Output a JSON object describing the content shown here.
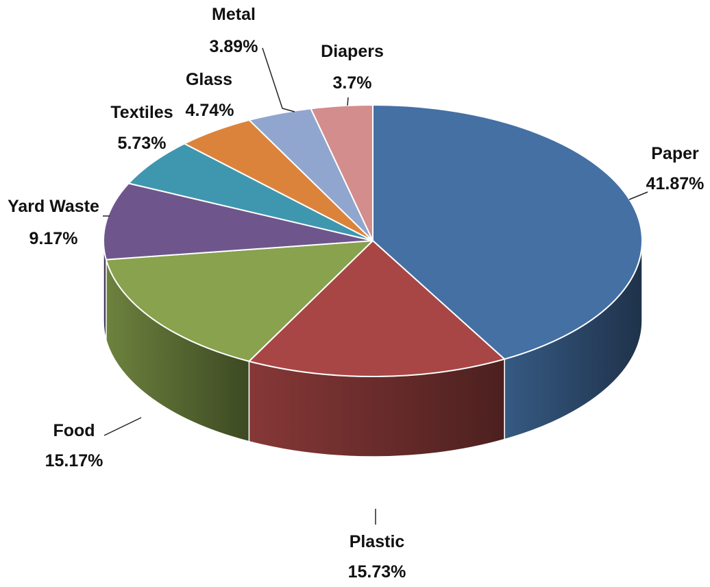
{
  "chart_data": {
    "type": "pie",
    "style": "3d",
    "title": "",
    "legend": "none",
    "slices": [
      {
        "name": "Paper",
        "value": 41.87,
        "label": "41.87%",
        "color": "#4470A4"
      },
      {
        "name": "Plastic",
        "value": 15.73,
        "label": "15.73%",
        "color": "#A84645"
      },
      {
        "name": "Food",
        "value": 15.17,
        "label": "15.17%",
        "color": "#88A24D"
      },
      {
        "name": "Yard Waste",
        "value": 9.17,
        "label": "9.17%",
        "color": "#6E568C"
      },
      {
        "name": "Textiles",
        "value": 5.73,
        "label": "5.73%",
        "color": "#3F97AF"
      },
      {
        "name": "Glass",
        "value": 4.74,
        "label": "4.74%",
        "color": "#DC833B"
      },
      {
        "name": "Metal",
        "value": 3.89,
        "label": "3.89%",
        "color": "#91A6CE"
      },
      {
        "name": "Diapers",
        "value": 3.7,
        "label": "3.7%",
        "color": "#D28D8C"
      }
    ]
  }
}
